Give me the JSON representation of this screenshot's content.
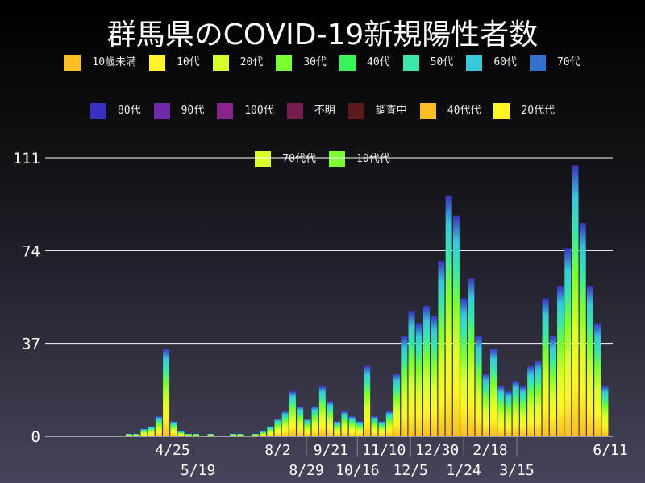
{
  "title": "群馬県のCOVID-19新規陽性者数",
  "chart_data": {
    "type": "bar",
    "stacked": true,
    "title": "群馬県のCOVID-19新規陽性者数",
    "legend_position": "top",
    "legend": [
      {
        "name": "10歳未満",
        "color": "#fbbd24"
      },
      {
        "name": "10代",
        "color": "#fff526"
      },
      {
        "name": "20代",
        "color": "#d9ff2b"
      },
      {
        "name": "30代",
        "color": "#7aff30"
      },
      {
        "name": "40代",
        "color": "#35f558"
      },
      {
        "name": "50代",
        "color": "#38e8a8"
      },
      {
        "name": "60代",
        "color": "#38c8dc"
      },
      {
        "name": "70代",
        "color": "#3670cf"
      },
      {
        "name": "80代",
        "color": "#3a30c0"
      },
      {
        "name": "90代",
        "color": "#7029a8"
      },
      {
        "name": "100代",
        "color": "#8a238a"
      },
      {
        "name": "不明",
        "color": "#751d4c"
      },
      {
        "name": "調査中",
        "color": "#5a1a1e"
      },
      {
        "name": "40代代",
        "color": "#fbbd24"
      },
      {
        "name": "20代代",
        "color": "#fff526"
      },
      {
        "name": "70代代",
        "color": "#d9ff2b"
      },
      {
        "name": "10代代",
        "color": "#7aff30"
      }
    ],
    "ylim": [
      0,
      111
    ],
    "yticks": [
      0,
      37,
      74,
      111
    ],
    "grid": true,
    "xticks": [
      {
        "date": "2020-04-25",
        "label": "4/25"
      },
      {
        "date": "2020-05-19",
        "label": "5/19"
      },
      {
        "date": "2020-08-02",
        "label": "8/2"
      },
      {
        "date": "2020-08-29",
        "label": "8/29"
      },
      {
        "date": "2020-09-21",
        "label": "9/21"
      },
      {
        "date": "2020-10-16",
        "label": "10/16"
      },
      {
        "date": "2020-11-10",
        "label": "11/10"
      },
      {
        "date": "2020-12-05",
        "label": "12/5"
      },
      {
        "date": "2020-12-30",
        "label": "12/30"
      },
      {
        "date": "2021-01-24",
        "label": "1/24"
      },
      {
        "date": "2021-02-18",
        "label": "2/18"
      },
      {
        "date": "2021-03-15",
        "label": "3/15"
      },
      {
        "date": "2021-06-11",
        "label": "6/11"
      }
    ],
    "x": [
      "2020-03-08",
      "2020-03-15",
      "2020-03-22",
      "2020-03-29",
      "2020-04-05",
      "2020-04-12",
      "2020-04-19",
      "2020-04-26",
      "2020-05-03",
      "2020-05-10",
      "2020-05-17",
      "2020-05-24",
      "2020-05-31",
      "2020-06-07",
      "2020-06-14",
      "2020-06-21",
      "2020-06-28",
      "2020-07-05",
      "2020-07-12",
      "2020-07-19",
      "2020-07-26",
      "2020-08-02",
      "2020-08-09",
      "2020-08-16",
      "2020-08-23",
      "2020-08-30",
      "2020-09-06",
      "2020-09-13",
      "2020-09-20",
      "2020-09-27",
      "2020-10-04",
      "2020-10-11",
      "2020-10-18",
      "2020-10-25",
      "2020-11-01",
      "2020-11-08",
      "2020-11-15",
      "2020-11-22",
      "2020-11-29",
      "2020-12-06",
      "2020-12-13",
      "2020-12-20",
      "2020-12-27",
      "2021-01-03",
      "2021-01-10",
      "2021-01-17",
      "2021-01-24",
      "2021-01-31",
      "2021-02-07",
      "2021-02-14",
      "2021-02-21",
      "2021-02-28",
      "2021-03-07",
      "2021-03-14",
      "2021-03-21",
      "2021-03-28",
      "2021-04-04",
      "2021-04-11",
      "2021-04-18",
      "2021-04-25",
      "2021-05-02",
      "2021-05-09",
      "2021-05-16",
      "2021-05-23",
      "2021-05-30",
      "2021-06-06"
    ],
    "values": [
      0,
      1,
      1,
      3,
      4,
      8,
      35,
      6,
      2,
      1,
      1,
      0,
      1,
      0,
      0,
      1,
      1,
      0,
      1,
      2,
      4,
      7,
      10,
      18,
      12,
      7,
      12,
      20,
      14,
      6,
      10,
      8,
      6,
      28,
      8,
      6,
      10,
      25,
      40,
      50,
      45,
      52,
      48,
      70,
      96,
      88,
      55,
      63,
      40,
      25,
      35,
      20,
      18,
      22,
      20,
      28,
      30,
      55,
      40,
      60,
      75,
      108,
      85,
      60,
      45,
      20
    ]
  }
}
